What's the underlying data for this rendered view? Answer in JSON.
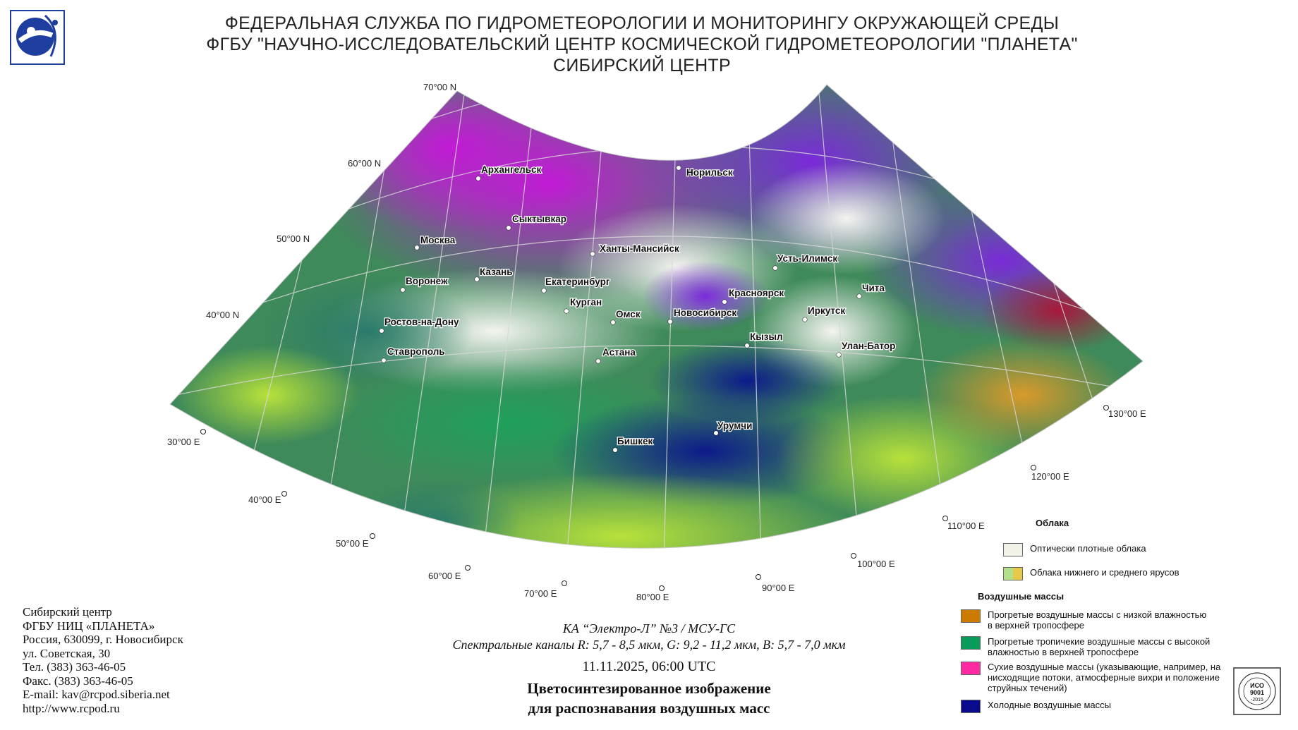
{
  "header": {
    "line1": "ФЕДЕРАЛЬНАЯ СЛУЖБА ПО ГИДРОМЕТЕОРОЛОГИИ И МОНИТОРИНГУ ОКРУЖАЮЩЕЙ СРЕДЫ",
    "line2": "ФГБУ \"НАУЧНО-ИССЛЕДОВАТЕЛЬСКИЙ ЦЕНТР КОСМИЧЕСКОЙ ГИДРОМЕТЕОРОЛОГИИ \"ПЛАНЕТА\"",
    "line3": "СИБИРСКИЙ ЦЕНТР"
  },
  "map": {
    "lat_labels": [
      "70°00 N",
      "60°00 N",
      "50°00 N",
      "40°00 N"
    ],
    "lon_labels": [
      "30°00 E",
      "40°00 E",
      "50°00 E",
      "60°00 E",
      "70°00 E",
      "80°00 E",
      "90°00 E",
      "100°00 E",
      "110°00 E",
      "120°00 E",
      "130°00 E"
    ],
    "cities": [
      "Архангельск",
      "Норильск",
      "Сыктывкар",
      "Москва",
      "Ханты-Мансийск",
      "Усть-Илимск",
      "Казань",
      "Воронеж",
      "Екатеринбург",
      "Красноярск",
      "Чита",
      "Курган",
      "Омск",
      "Новосибирск",
      "Иркутск",
      "Ростов-на-Дону",
      "Кызыл",
      "Улан-Батор",
      "Астана",
      "Ставрополь",
      "Урумчи",
      "Бишкек"
    ]
  },
  "address": {
    "lines": [
      "Сибирский центр",
      "ФГБУ НИЦ «ПЛАНЕТА»",
      "Россия, 630099, г. Новосибирск",
      "ул. Советская, 30",
      "Тел. (383) 363-46-05",
      "Факс. (383) 363-46-05",
      "E-mail: kav@rcpod.siberia.net",
      "http://www.rcpod.ru"
    ]
  },
  "caption": {
    "satellite": "КА “Электро-Л” №3 / МСУ-ГС",
    "channels": "Спектральные каналы R: 5,7 - 8,5 мкм, G: 9,2 - 11,2 мкм, B: 5,7 - 7,0 мкм",
    "datetime": "11.11.2025, 06:00 UTC",
    "title_line1": "Цветосинтезированное изображение",
    "title_line2": "для распознавания воздушных масс"
  },
  "legend": {
    "clouds_heading": "Облака",
    "clouds": [
      {
        "label": "Оптически плотные облака",
        "color": "#f2f2e8"
      },
      {
        "label": "Облака нижнего и среднего ярусов",
        "colors": [
          "#b4e08a",
          "#e6c84a"
        ]
      }
    ],
    "airmass_heading": "Воздушные массы",
    "airmasses": [
      {
        "label": "Прогретые воздушные массы с низкой влажностью в верхней тропосфере",
        "color": "#cc7a00"
      },
      {
        "label": "Прогретые тропичекие воздушные массы с высокой влажностью в верхней тропосфере",
        "color": "#0a9a5a"
      },
      {
        "label": "Сухие воздушные массы (указывающие, например, на нисходящие потоки, атмосферные вихри и положение струйных течений)",
        "color": "#ff2aa0"
      },
      {
        "label": "Холодные воздушные массы",
        "color": "#0a0a8c"
      }
    ]
  },
  "iso": {
    "line1": "ИСО",
    "line2": "9001",
    "line3": "-2015",
    "ring": "ДОБРОСОВЕСТНЫЙ ПОСТАВЩИК"
  }
}
